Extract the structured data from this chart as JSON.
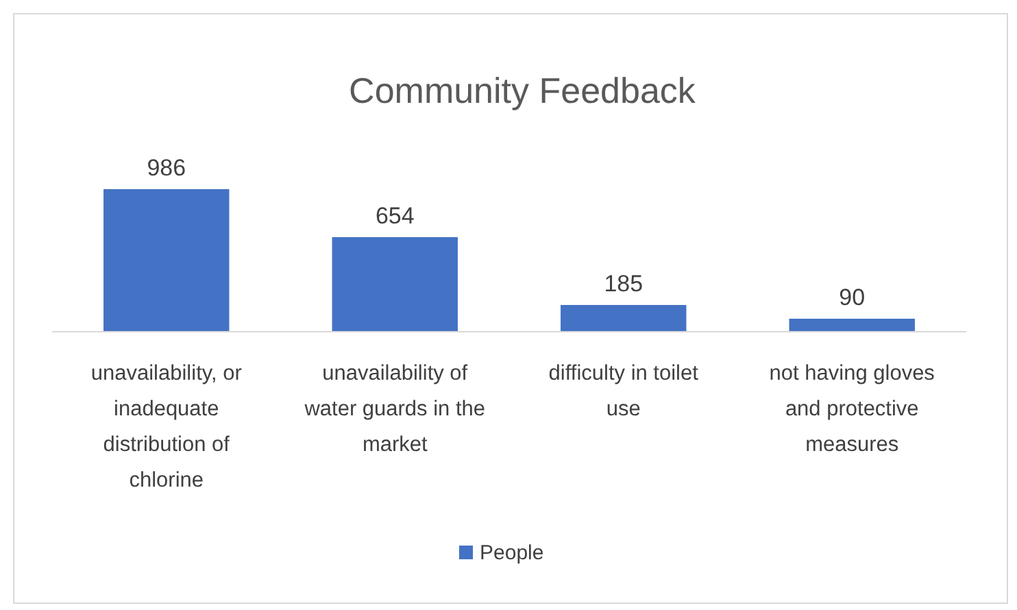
{
  "chart_data": {
    "type": "bar",
    "title": "Community Feedback",
    "categories": [
      "unavailability, or inadequate distribution of chlorine",
      "unavailability of water guards in the market",
      "difficulty in toilet use",
      "not having gloves and protective measures"
    ],
    "series": [
      {
        "name": "People",
        "color": "#4472c4",
        "values": [
          986,
          654,
          185,
          90
        ]
      }
    ],
    "data_labels": true,
    "legend": "bottom"
  }
}
